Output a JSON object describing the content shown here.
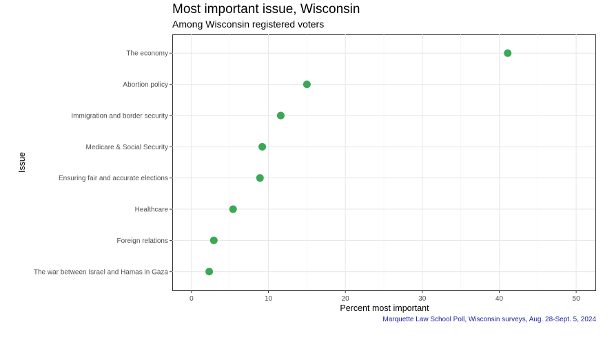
{
  "chart_data": {
    "type": "scatter",
    "title": "Most important issue, Wisconsin",
    "subtitle": "Among Wisconsin registered voters",
    "xlabel": "Percent most important",
    "ylabel": "Issue",
    "caption": "Marquette Law School Poll, Wisconsin surveys, Aug. 28-Sept. 5, 2024",
    "xlim": [
      -2.5,
      52.5
    ],
    "xticks": [
      0,
      10,
      20,
      30,
      40,
      50
    ],
    "grid": true,
    "point_color": "#3aa856",
    "categories": [
      "The economy",
      "Abortion policy",
      "Immigration and border security",
      "Medicare & Social Security",
      "Ensuring fair and accurate elections",
      "Healthcare",
      "Foreign relations",
      "The war between Israel and Hamas in Gaza"
    ],
    "values": [
      41.1,
      15.0,
      11.6,
      9.2,
      8.9,
      5.4,
      2.9,
      2.3
    ]
  }
}
